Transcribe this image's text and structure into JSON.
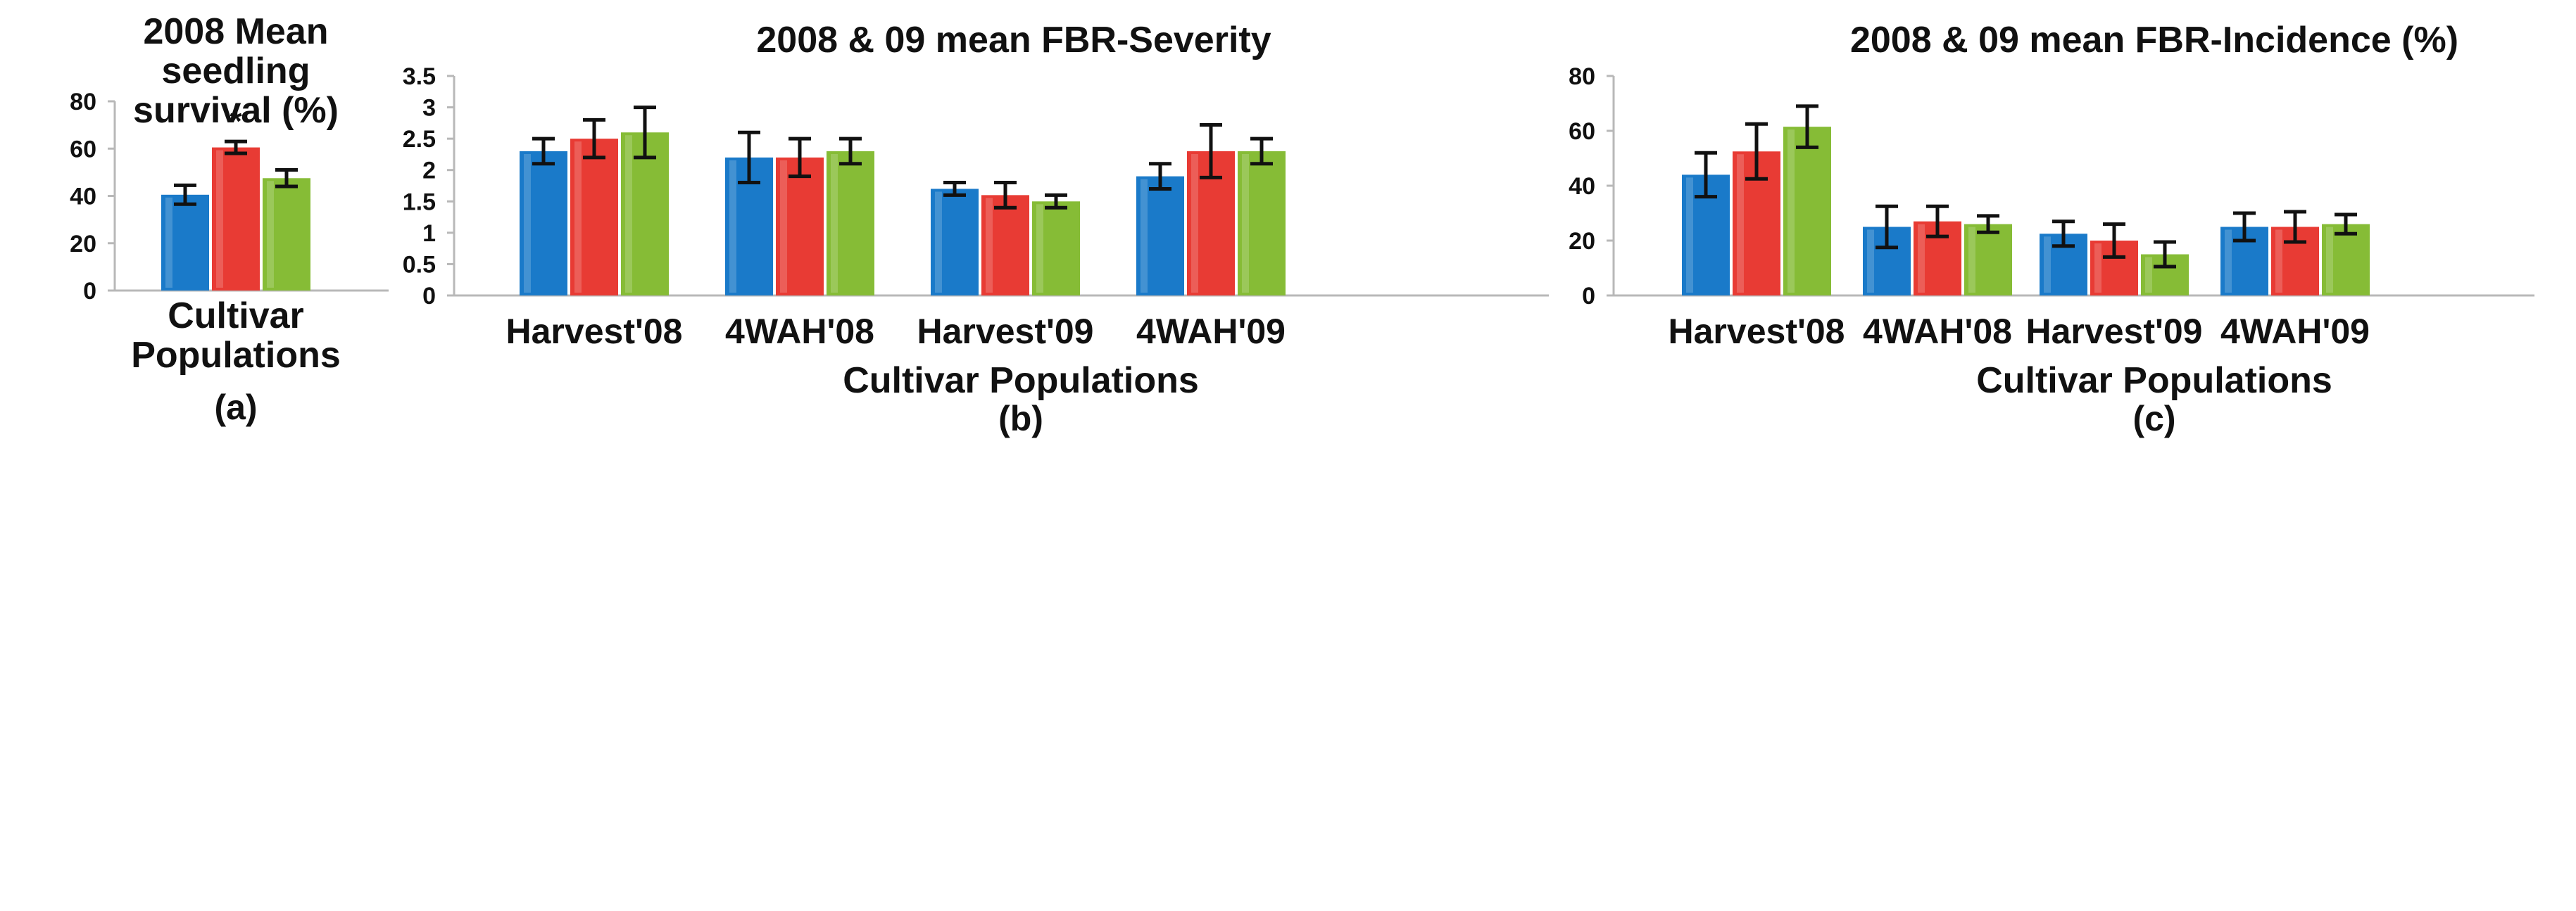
{
  "colors": {
    "series_blue": "#1a7ac9",
    "series_red": "#e83b34",
    "series_green": "#86bc36"
  },
  "chart_data": [
    {
      "id": "a",
      "type": "bar",
      "title": [
        "2008 Mean",
        "seedling",
        "survival (%)"
      ],
      "categories": [
        ""
      ],
      "xlabel": [
        "Cultivar",
        "Populations"
      ],
      "panel_label": "(a)",
      "ylim": [
        0,
        80
      ],
      "yticks": [
        "0",
        "20",
        "40",
        "60",
        "80"
      ],
      "series": [
        {
          "name": "blue",
          "values": [
            40.5
          ],
          "errors": [
            4
          ]
        },
        {
          "name": "red",
          "values": [
            60.5
          ],
          "errors": [
            2.5
          ]
        },
        {
          "name": "green",
          "values": [
            47.5
          ],
          "errors": [
            3.5
          ]
        }
      ],
      "annotations": [
        {
          "text": "*",
          "series": 1,
          "category": 0
        }
      ]
    },
    {
      "id": "b",
      "type": "bar",
      "title": [
        "2008 & 09 mean FBR-Severity"
      ],
      "categories": [
        "Harvest'08",
        "4WAH'08",
        "Harvest'09",
        "4WAH'09"
      ],
      "xlabel": [
        "Cultivar Populations"
      ],
      "panel_label": "(b)",
      "ylim": [
        0,
        3.5
      ],
      "yticks": [
        "0",
        "0.5",
        "1",
        "1.5",
        "2",
        "2.5",
        "3",
        "3.5"
      ],
      "series": [
        {
          "name": "blue",
          "values": [
            2.3,
            2.2,
            1.7,
            1.9
          ],
          "errors": [
            0.2,
            0.4,
            0.1,
            0.2
          ]
        },
        {
          "name": "red",
          "values": [
            2.5,
            2.2,
            1.6,
            2.3
          ],
          "errors": [
            0.3,
            0.3,
            0.2,
            0.42
          ]
        },
        {
          "name": "green",
          "values": [
            2.6,
            2.3,
            1.5,
            2.3
          ],
          "errors": [
            0.4,
            0.2,
            0.1,
            0.2
          ]
        }
      ],
      "annotations": []
    },
    {
      "id": "c",
      "type": "bar",
      "title": [
        "2008 & 09 mean FBR-Incidence (%)"
      ],
      "categories": [
        "Harvest'08",
        "4WAH'08",
        "Harvest'09",
        "4WAH'09"
      ],
      "xlabel": [
        "Cultivar Populations"
      ],
      "panel_label": "(c)",
      "ylim": [
        0,
        80
      ],
      "yticks": [
        "0",
        "20",
        "40",
        "60",
        "80"
      ],
      "series": [
        {
          "name": "blue",
          "values": [
            44,
            25,
            22.5,
            25
          ],
          "errors": [
            8,
            7.5,
            4.5,
            5
          ]
        },
        {
          "name": "red",
          "values": [
            52.5,
            27,
            20,
            25
          ],
          "errors": [
            10,
            5.5,
            6,
            5.5
          ]
        },
        {
          "name": "green",
          "values": [
            61.5,
            26,
            15,
            26
          ],
          "errors": [
            7.5,
            3,
            4.5,
            3.5
          ]
        }
      ],
      "annotations": []
    }
  ]
}
